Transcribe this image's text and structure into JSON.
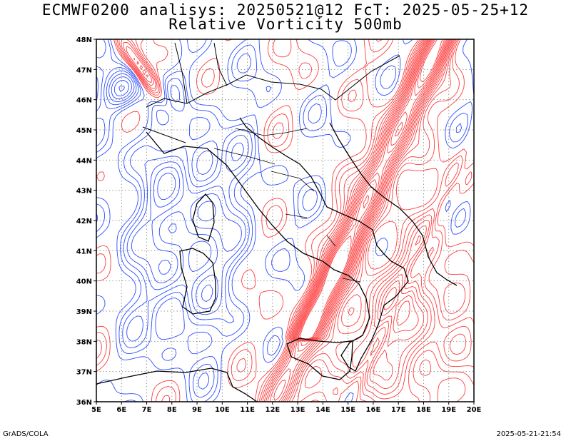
{
  "title_line1": "ECMWF0200 analisys: 20250521@12 FcT: 2025-05-25+12",
  "title_line2": "Relative Vorticity 500mb",
  "footer_left": "GrADS/COLA",
  "footer_right": "2025-05-21-21:54",
  "map": {
    "lon_range": [
      5,
      20
    ],
    "lat_range": [
      36,
      48
    ],
    "lon_ticks": [
      "5E",
      "6E",
      "7E",
      "8E",
      "9E",
      "10E",
      "11E",
      "12E",
      "13E",
      "14E",
      "15E",
      "16E",
      "17E",
      "18E",
      "19E",
      "20E"
    ],
    "lat_ticks": [
      "36N",
      "37N",
      "38N",
      "39N",
      "40N",
      "41N",
      "42N",
      "43N",
      "44N",
      "45N",
      "46N",
      "47N",
      "48N"
    ],
    "grid": "dotted",
    "colors": {
      "positive_contours": "#ff3b3b",
      "negative_contours": "#2b4cff",
      "coastline": "#000000",
      "grid": "#999999"
    }
  }
}
